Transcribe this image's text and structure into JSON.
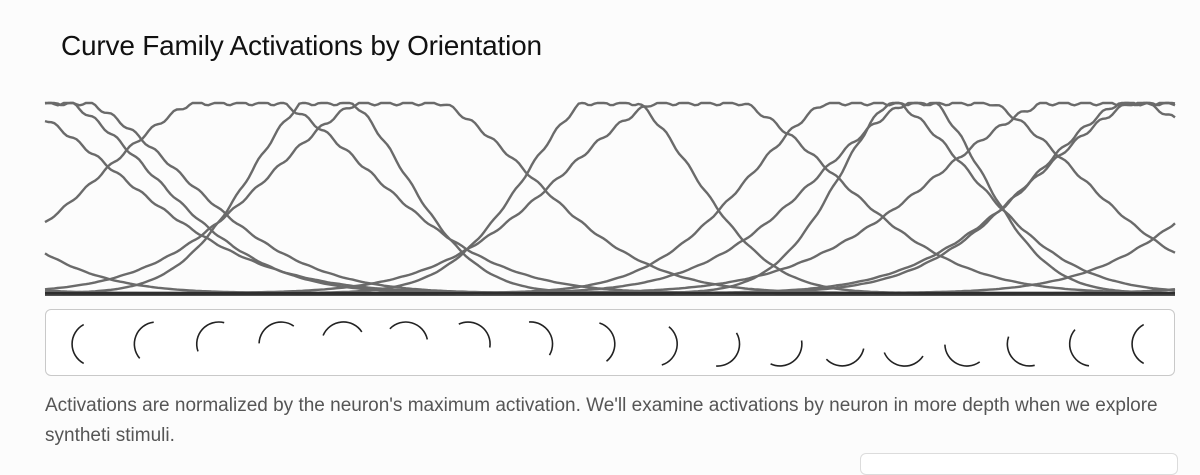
{
  "title": "Curve Family Activations by Orientation",
  "caption": "Activations are normalized by the neuron's maximum activation. We'll examine activations by neuron in more depth when we explore syntheti stimuli.",
  "colors": {
    "curve": "#6a6a6a",
    "axis": "#1a1a1a",
    "stimulus": "#222222"
  },
  "chart_data": {
    "type": "line",
    "xlabel": "",
    "ylabel": "",
    "x_domain": [
      0,
      360
    ],
    "x_unit": "degrees (orientation)",
    "ylim": [
      0,
      1
    ],
    "grid": false,
    "legend": "none",
    "series": [
      {
        "peak": 0,
        "width": 42,
        "values_desc": "tuning curve"
      },
      {
        "peak": 61,
        "width": 42
      },
      {
        "peak": 90,
        "width": 24
      },
      {
        "peak": 113,
        "width": 40
      },
      {
        "peak": 180,
        "width": 26
      },
      {
        "peak": 208,
        "width": 42
      },
      {
        "peak": 260,
        "width": 34
      },
      {
        "peak": 276,
        "width": 22
      },
      {
        "peak": 288,
        "width": 40
      },
      {
        "peak": 334,
        "width": 48
      },
      {
        "peak": 355,
        "width": 38
      }
    ]
  },
  "stimuli": {
    "count": 18,
    "start_angle_deg": 180,
    "end_angle_deg": 540
  }
}
